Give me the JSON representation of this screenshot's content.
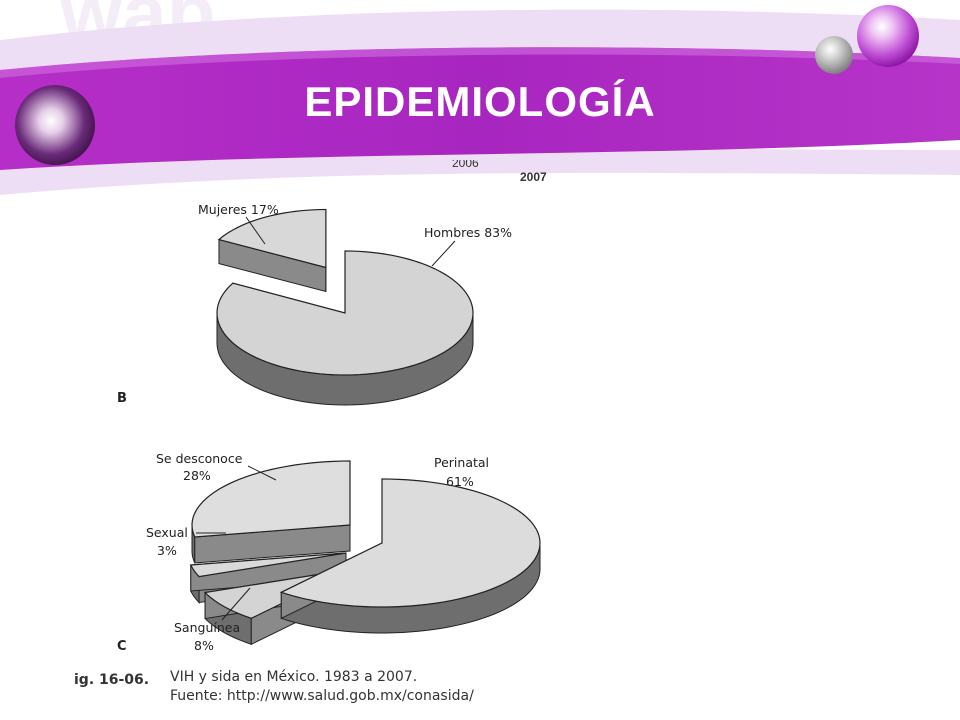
{
  "slide": {
    "title": "EPIDEMIOLOGÍA",
    "watermark": "wap",
    "colors": {
      "banner": "#b030c4",
      "banner_light": "#d8a6e8",
      "background": "#ffffff"
    }
  },
  "clipping": {
    "top_cut_labels": [
      "2006",
      "2007"
    ]
  },
  "chart_data": [
    {
      "type": "pie",
      "panel": "B",
      "slices": [
        {
          "label": "Mujeres",
          "value": 17,
          "display": "Mujeres 17%"
        },
        {
          "label": "Hombres",
          "value": 83,
          "display": "Hombres 83%"
        }
      ]
    },
    {
      "type": "pie",
      "panel": "C",
      "slices": [
        {
          "label": "Perinatal",
          "value": 61,
          "display_line1": "Perinatal",
          "display_line2": "61%"
        },
        {
          "label": "Sanguínea",
          "value": 8,
          "display_line1": "Sanguínea",
          "display_line2": "8%"
        },
        {
          "label": "Sexual",
          "value": 3,
          "display_line1": "Sexual",
          "display_line2": "3%"
        },
        {
          "label": "Se desconoce",
          "value": 28,
          "display_line1": "Se desconoce",
          "display_line2": "28%"
        }
      ]
    }
  ],
  "caption": {
    "fig_label": "ig. 16-06.",
    "line1": "VIH y sida en México. 1983 a 2007.",
    "line2": "Fuente: http://www.salud.gob.mx/conasida/"
  }
}
